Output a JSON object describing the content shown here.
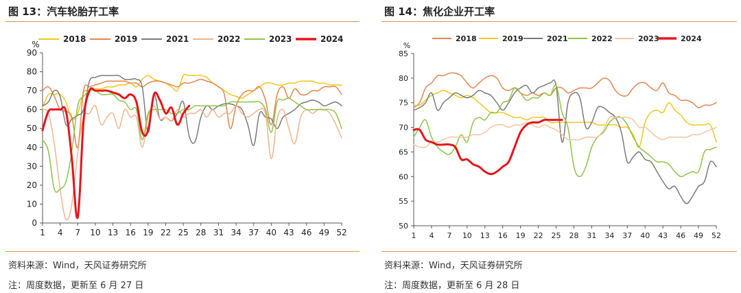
{
  "charts": [
    {
      "title": "图 13：汽车轮胎开工率",
      "source": "资料来源：Wind，天风证券研究所",
      "note": "注：周度数据，更新至 6 月 27 日"
    },
    {
      "title": "图 14：焦化企业开工率",
      "source": "资料来源：Wind，天风证券研究所",
      "note": "注：周度数据，更新至 6 月 28 日"
    }
  ],
  "chart_data": [
    {
      "type": "line",
      "title": "图 13：汽车轮胎开工率",
      "ylabel": "%",
      "ylim": [
        0,
        90
      ],
      "yticks": [
        0,
        10,
        20,
        30,
        40,
        50,
        60,
        70,
        80,
        90
      ],
      "xlim": [
        1,
        52
      ],
      "xticks": [
        1,
        4,
        7,
        10,
        13,
        16,
        19,
        22,
        25,
        28,
        31,
        34,
        37,
        40,
        43,
        46,
        49,
        52
      ],
      "grid": false,
      "legend": "top",
      "series": [
        {
          "name": "2018",
          "color": "#f5c518",
          "width": 1.5,
          "values": [
            61,
            68,
            68,
            68,
            64,
            55,
            58,
            69,
            70,
            71,
            71,
            72,
            72,
            73,
            73,
            74,
            72,
            76,
            78,
            76,
            75,
            74,
            72,
            70,
            78,
            78,
            78,
            78,
            77,
            74,
            72,
            70,
            68,
            67,
            66,
            68,
            70,
            72,
            74,
            74,
            73,
            73,
            74,
            74,
            75,
            75,
            75,
            74,
            74,
            73,
            73,
            73
          ]
        },
        {
          "name": "2019",
          "color": "#e8844a",
          "width": 1.5,
          "values": [
            70,
            72,
            67,
            60,
            59,
            56,
            40,
            70,
            72,
            73,
            74,
            75,
            75,
            75,
            75,
            74,
            74,
            72,
            74,
            75,
            75,
            74,
            73,
            72,
            74,
            74,
            75,
            76,
            75,
            74,
            72,
            68,
            50,
            62,
            68,
            70,
            70,
            72,
            65,
            52,
            68,
            72,
            66,
            71,
            68,
            68,
            70,
            70,
            72,
            72,
            72,
            68
          ]
        },
        {
          "name": "2021",
          "color": "#7a7a7a",
          "width": 1.5,
          "values": [
            62,
            64,
            70,
            67,
            52,
            55,
            57,
            60,
            75,
            77,
            78,
            78,
            78,
            78,
            76,
            76,
            76,
            72,
            48,
            68,
            55,
            56,
            54,
            58,
            64,
            46,
            43,
            56,
            62,
            60,
            62,
            63,
            63,
            62,
            60,
            52,
            41,
            58,
            56,
            55,
            50,
            56,
            58,
            60,
            63,
            64,
            65,
            64,
            62,
            63,
            64,
            62
          ]
        },
        {
          "name": "2022",
          "color": "#f2b48a",
          "width": 1.5,
          "values": [
            60,
            58,
            42,
            18,
            2,
            10,
            37,
            56,
            58,
            62,
            52,
            56,
            58,
            50,
            60,
            56,
            56,
            40,
            56,
            62,
            55,
            56,
            54,
            60,
            56,
            58,
            58,
            60,
            56,
            60,
            56,
            58,
            58,
            62,
            58,
            56,
            58,
            60,
            58,
            34,
            55,
            60,
            50,
            42,
            56,
            60,
            58,
            60,
            60,
            58,
            52,
            45
          ]
        },
        {
          "name": "2023",
          "color": "#8cc63f",
          "width": 1.5,
          "values": [
            44,
            38,
            18,
            18,
            22,
            38,
            62,
            67,
            70,
            70,
            68,
            68,
            68,
            65,
            64,
            60,
            60,
            44,
            58,
            60,
            60,
            60,
            58,
            58,
            60,
            60,
            62,
            62,
            62,
            62,
            62,
            62,
            64,
            64,
            64,
            64,
            64,
            64,
            60,
            48,
            64,
            65,
            66,
            64,
            62,
            60,
            60,
            60,
            60,
            60,
            58,
            50
          ]
        },
        {
          "name": "2024",
          "color": "#e8131b",
          "width": 3,
          "values": [
            49,
            59,
            60,
            60,
            59,
            34,
            3,
            54,
            70,
            70,
            70,
            70,
            69,
            68,
            66,
            68,
            64,
            48,
            49,
            68,
            65,
            58,
            61,
            52,
            58,
            62
          ]
        }
      ]
    },
    {
      "type": "line",
      "title": "图 14：焦化企业开工率",
      "ylabel": "%",
      "ylim": [
        50,
        85
      ],
      "yticks": [
        50,
        55,
        60,
        65,
        70,
        75,
        80,
        85
      ],
      "xlim": [
        1,
        52
      ],
      "xticks": [
        1,
        4,
        7,
        10,
        13,
        16,
        19,
        22,
        25,
        28,
        31,
        34,
        37,
        40,
        43,
        46,
        49,
        52
      ],
      "grid": false,
      "legend": "top",
      "series": [
        {
          "name": "2018",
          "color": "#e8844a",
          "width": 1.5,
          "values": [
            74,
            75,
            78,
            79,
            80.5,
            80.5,
            81,
            81,
            80.5,
            79,
            78,
            79,
            80,
            80.5,
            80,
            78,
            77.5,
            78,
            77,
            76.5,
            77,
            76.5,
            77,
            76.5,
            78,
            78,
            77,
            77.5,
            78,
            78,
            78,
            79,
            80,
            79.5,
            77.5,
            76.5,
            76.5,
            78,
            79,
            79,
            78,
            77.5,
            79,
            77,
            76.5,
            75.5,
            75.5,
            75,
            74,
            74.5,
            74.5,
            75
          ]
        },
        {
          "name": "2019",
          "color": "#f5c518",
          "width": 1.5,
          "values": [
            74.5,
            74.5,
            75.5,
            76.5,
            77,
            77.5,
            77,
            76.5,
            76,
            76.5,
            76,
            75,
            74,
            73,
            73,
            73,
            72.5,
            72,
            72,
            71.5,
            72,
            72,
            72,
            71,
            71,
            71,
            71,
            71,
            71,
            71,
            71,
            70.5,
            70.5,
            70.5,
            70.5,
            70,
            70,
            68.5,
            66,
            71,
            73,
            73.5,
            73,
            75,
            73.5,
            72.5,
            71,
            70.5,
            70.5,
            70.5,
            70.5,
            67
          ]
        },
        {
          "name": "2021",
          "color": "#7a7a7a",
          "width": 1.5,
          "values": [
            73.5,
            74,
            75,
            77,
            73.5,
            75,
            76,
            77,
            76.5,
            76,
            76.5,
            77.5,
            77,
            76.5,
            75,
            73.5,
            75,
            77,
            78,
            78.5,
            77,
            78,
            78.5,
            79,
            78.5,
            67,
            75,
            77,
            76,
            70,
            71,
            74,
            74,
            73,
            72,
            69,
            63,
            64,
            65,
            63.5,
            63,
            61,
            59,
            57.5,
            58,
            56,
            54.5,
            56,
            58,
            59,
            63,
            62
          ]
        },
        {
          "name": "2022",
          "color": "#8cc63f",
          "width": 1.5,
          "values": [
            68,
            70,
            71.5,
            68,
            66,
            65,
            64.5,
            66,
            68.5,
            67,
            71,
            72,
            71.5,
            73,
            73,
            75,
            75.5,
            78,
            77,
            75.5,
            76,
            76,
            77,
            76.5,
            78.5,
            73,
            70,
            62,
            60,
            62,
            66,
            68,
            69,
            71,
            72,
            72,
            70.5,
            68,
            66,
            65,
            64,
            63,
            63,
            62.5,
            61,
            60,
            60.5,
            61,
            61,
            65,
            65.5,
            66
          ]
        },
        {
          "name": "2023",
          "color": "#f5c4a0",
          "width": 1.5,
          "values": [
            66.5,
            66,
            66,
            67,
            67,
            67.5,
            68,
            68,
            68,
            68,
            68.5,
            68.5,
            69,
            70,
            70.5,
            70.5,
            70,
            70.5,
            70.5,
            71,
            70.5,
            70,
            70.5,
            70,
            69.5,
            68.5,
            67.5,
            67.5,
            67.5,
            68,
            68,
            68,
            69.5,
            72,
            72,
            72,
            72,
            71.5,
            70,
            70,
            69,
            68,
            67.5,
            68,
            68,
            68,
            68,
            68.5,
            68.5,
            69,
            69.5,
            70
          ]
        },
        {
          "name": "2024",
          "color": "#e8131b",
          "width": 3,
          "values": [
            69.5,
            69.5,
            67.5,
            67,
            66.5,
            66.5,
            66.5,
            66,
            63.5,
            63.5,
            62.5,
            62,
            61,
            60.5,
            61,
            62,
            63,
            66,
            69,
            70.5,
            71,
            71,
            71.5,
            71.5,
            71.5,
            71.5
          ]
        }
      ]
    }
  ]
}
